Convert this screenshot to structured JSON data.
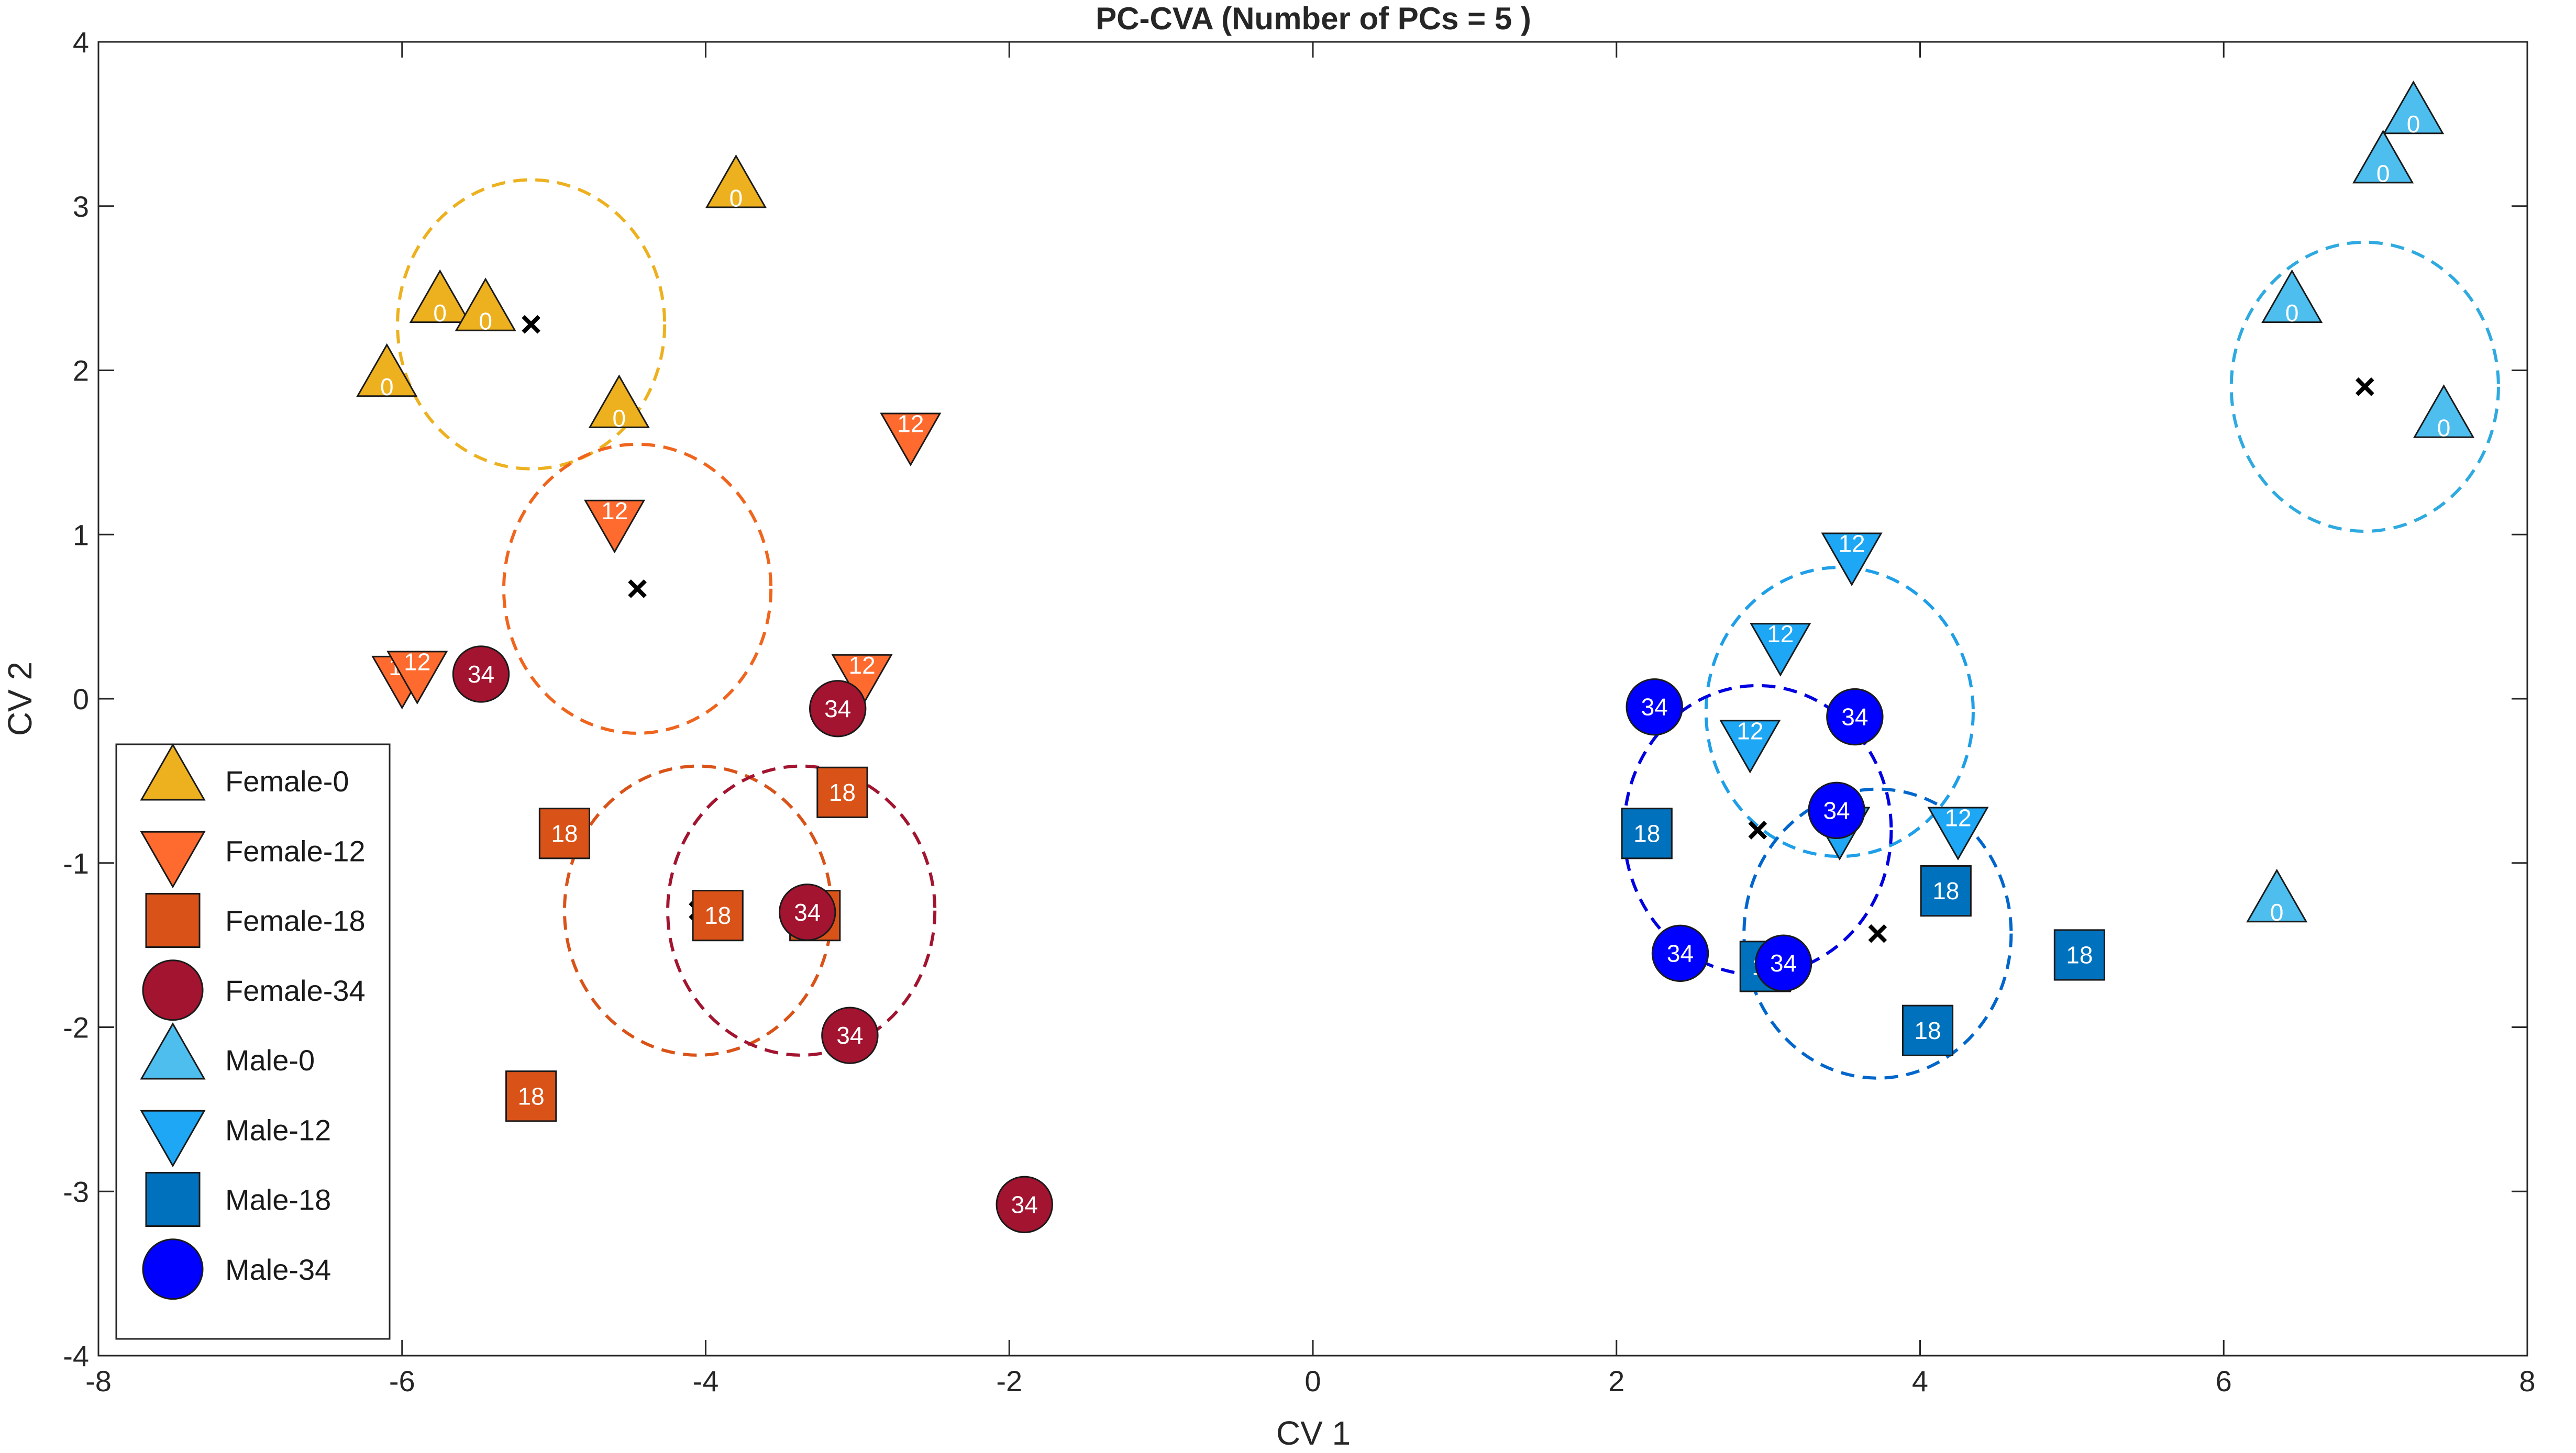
{
  "chart_data": {
    "type": "scatter",
    "title": "PC-CVA (Number of PCs = 5 )",
    "xlabel": "CV 1",
    "ylabel": "CV 2",
    "xlim": [
      -8,
      8
    ],
    "ylim": [
      -4,
      4
    ],
    "x_ticks": [
      -8,
      -6,
      -4,
      -2,
      0,
      2,
      4,
      6,
      8
    ],
    "y_ticks": [
      -4,
      -3,
      -2,
      -1,
      0,
      1,
      2,
      3,
      4
    ],
    "grid": false,
    "legend_position": "lower-left",
    "series": [
      {
        "name": "Female-0",
        "label": "0",
        "marker": "triangle-up",
        "color": "#EDB120",
        "text_color": "#ffffff",
        "points": [
          [
            -6.1,
            1.95
          ],
          [
            -5.75,
            2.4
          ],
          [
            -5.45,
            2.35
          ],
          [
            -4.57,
            1.76
          ],
          [
            -3.8,
            3.1
          ]
        ]
      },
      {
        "name": "Female-12",
        "label": "12",
        "marker": "triangle-down",
        "color": "#FF6A2F",
        "text_color": "#ffffff",
        "points": [
          [
            -4.6,
            1.1
          ],
          [
            -2.65,
            1.63
          ],
          [
            -6.0,
            0.15
          ],
          [
            -5.9,
            0.18
          ],
          [
            -2.97,
            0.16
          ]
        ]
      },
      {
        "name": "Female-18",
        "label": "18",
        "marker": "square",
        "color": "#D95319",
        "text_color": "#ffffff",
        "points": [
          [
            -4.93,
            -0.82
          ],
          [
            -3.1,
            -0.57
          ],
          [
            -3.92,
            -1.32
          ],
          [
            -3.28,
            -1.32
          ],
          [
            -5.15,
            -2.42
          ]
        ]
      },
      {
        "name": "Female-34",
        "label": "34",
        "marker": "circle",
        "color": "#A2142F",
        "text_color": "#ffffff",
        "points": [
          [
            -5.48,
            0.15
          ],
          [
            -3.13,
            -0.06
          ],
          [
            -3.33,
            -1.3
          ],
          [
            -3.05,
            -2.05
          ],
          [
            -1.9,
            -3.08
          ]
        ]
      },
      {
        "name": "Male-0",
        "label": "0",
        "marker": "triangle-up",
        "color": "#4DBEEE",
        "text_color": "#ffffff",
        "points": [
          [
            7.25,
            3.55
          ],
          [
            7.05,
            3.25
          ],
          [
            6.45,
            2.4
          ],
          [
            7.45,
            1.7
          ],
          [
            6.35,
            -1.25
          ]
        ]
      },
      {
        "name": "Male-12",
        "label": "12",
        "marker": "triangle-down",
        "color": "#1EA7F5",
        "text_color": "#ffffff",
        "points": [
          [
            3.55,
            0.9
          ],
          [
            3.08,
            0.35
          ],
          [
            2.88,
            -0.24
          ],
          [
            3.47,
            -0.77
          ],
          [
            4.25,
            -0.77
          ]
        ]
      },
      {
        "name": "Male-18",
        "label": "18",
        "marker": "square",
        "color": "#0072BD",
        "text_color": "#ffffff",
        "points": [
          [
            2.2,
            -0.82
          ],
          [
            4.17,
            -1.17
          ],
          [
            5.05,
            -1.56
          ],
          [
            2.98,
            -1.63
          ],
          [
            4.05,
            -2.02
          ]
        ]
      },
      {
        "name": "Male-34",
        "label": "34",
        "marker": "circle",
        "color": "#0000FF",
        "text_color": "#ffffff",
        "points": [
          [
            2.25,
            -0.05
          ],
          [
            3.57,
            -0.11
          ],
          [
            3.45,
            -0.68
          ],
          [
            2.42,
            -1.55
          ],
          [
            3.1,
            -1.61
          ]
        ]
      }
    ],
    "centroids": [
      {
        "name": "Female-0",
        "x": -5.15,
        "y": 2.28,
        "radius": 0.88,
        "color": "#EDB120"
      },
      {
        "name": "Female-12",
        "x": -4.45,
        "y": 0.67,
        "radius": 0.88,
        "color": "#F0651E"
      },
      {
        "name": "Female-18",
        "x": -4.05,
        "y": -1.29,
        "radius": 0.88,
        "color": "#D95319"
      },
      {
        "name": "Female-34",
        "x": -3.37,
        "y": -1.29,
        "radius": 0.88,
        "color": "#A2142F"
      },
      {
        "name": "Male-0",
        "x": 6.93,
        "y": 1.9,
        "radius": 0.88,
        "color": "#2FAAE0"
      },
      {
        "name": "Male-12",
        "x": 3.47,
        "y": -0.08,
        "radius": 0.88,
        "color": "#1E9FE8"
      },
      {
        "name": "Male-18",
        "x": 3.72,
        "y": -1.43,
        "radius": 0.88,
        "color": "#0066CC"
      },
      {
        "name": "Male-34",
        "x": 2.93,
        "y": -0.8,
        "radius": 0.88,
        "color": "#0000E0"
      }
    ]
  }
}
